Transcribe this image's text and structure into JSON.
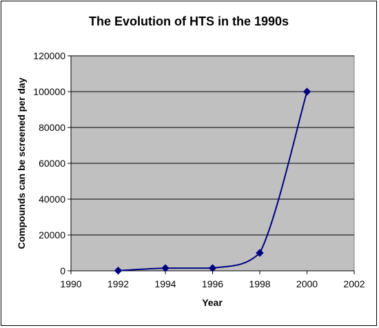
{
  "chart_data": {
    "type": "line",
    "title": "The Evolution of HTS in the 1990s",
    "xlabel": "Year",
    "ylabel": "Compounds can be screened per day",
    "xlim": [
      1990,
      2002
    ],
    "ylim": [
      0,
      120000
    ],
    "x_ticks": [
      "1990",
      "1992",
      "1994",
      "1996",
      "1998",
      "2000",
      "2002"
    ],
    "y_ticks": [
      "0",
      "20000",
      "40000",
      "60000",
      "80000",
      "100000",
      "120000"
    ],
    "grid": "horizontal",
    "legend": "none",
    "series": [
      {
        "x": [
          1992,
          1994,
          1996,
          1998,
          2000
        ],
        "y": [
          100,
          1500,
          1500,
          10000,
          100000
        ],
        "color": "#000080",
        "marker": "diamond",
        "smooth": true
      }
    ],
    "colors": {
      "plot_background": "#c0c0c0",
      "line": "#000080",
      "grid": "#000000"
    }
  }
}
